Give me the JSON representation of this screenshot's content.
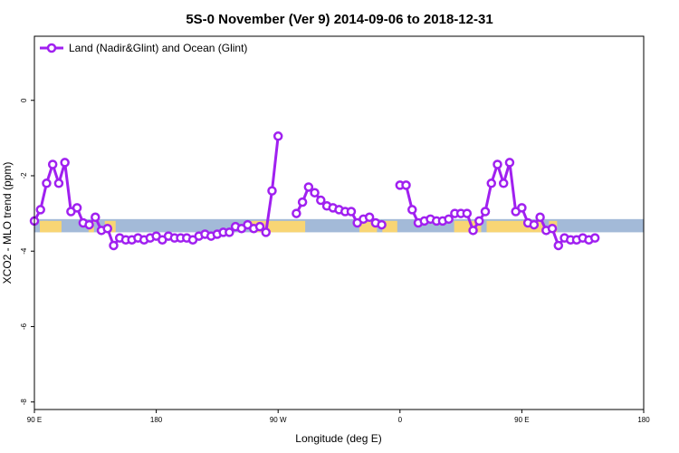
{
  "chart_data": {
    "type": "line",
    "title": "5S-0 November (Ver 9)   2014-09-06 to 2018-12-31",
    "xlabel": "Longitude (deg E)",
    "ylabel": "XCO2 - MLO trend (ppm)",
    "xlim": [
      90,
      540
    ],
    "ylim": [
      -8.2,
      1.7
    ],
    "x_ticks": [
      {
        "value": 90,
        "label": "90 E"
      },
      {
        "value": 180,
        "label": "180"
      },
      {
        "value": 270,
        "label": "90 W"
      },
      {
        "value": 360,
        "label": "0"
      },
      {
        "value": 450,
        "label": "90 E"
      },
      {
        "value": 540,
        "label": "180"
      }
    ],
    "y_ticks": [
      {
        "value": 0,
        "label": "0"
      },
      {
        "value": -2,
        "label": "-2"
      },
      {
        "value": -4,
        "label": "-4"
      },
      {
        "value": -6,
        "label": "-6"
      },
      {
        "value": -8,
        "label": "-8"
      }
    ],
    "legend_position": "top-left",
    "grid": false,
    "colors": {
      "series": "#a020f0",
      "ocean_band": "#a3bad8",
      "land_band": "#f8d574"
    },
    "band": {
      "y_range": [
        -3.5,
        -3.15
      ]
    },
    "series": [
      {
        "name": "Land (Nadir&Glint) and Ocean (Glint)",
        "points": [
          [
            90,
            -3.2
          ],
          [
            94.5,
            -2.9
          ],
          [
            99,
            -2.2
          ],
          [
            103.5,
            -1.7
          ],
          [
            108,
            -2.2
          ],
          [
            112.5,
            -1.65
          ],
          [
            117,
            -2.95
          ],
          [
            121.5,
            -2.85
          ],
          [
            126,
            -3.25
          ],
          [
            130.5,
            -3.3
          ],
          [
            135,
            -3.1
          ],
          [
            139.5,
            -3.45
          ],
          [
            144,
            -3.4
          ],
          [
            148.5,
            -3.85
          ],
          [
            153,
            -3.65
          ],
          [
            157.5,
            -3.7
          ],
          [
            162,
            -3.7
          ],
          [
            166.5,
            -3.65
          ],
          [
            171,
            -3.7
          ],
          [
            175.5,
            -3.65
          ],
          [
            180,
            -3.6
          ],
          [
            184.5,
            -3.7
          ],
          [
            189,
            -3.6
          ],
          [
            193.5,
            -3.65
          ],
          [
            198,
            -3.65
          ],
          [
            202.5,
            -3.65
          ],
          [
            207,
            -3.7
          ],
          [
            211.5,
            -3.6
          ],
          [
            216,
            -3.55
          ],
          [
            220.5,
            -3.6
          ],
          [
            225,
            -3.55
          ],
          [
            229.5,
            -3.5
          ],
          [
            234,
            -3.5
          ],
          [
            238.5,
            -3.35
          ],
          [
            243,
            -3.4
          ],
          [
            247.5,
            -3.3
          ],
          [
            252,
            -3.4
          ],
          [
            256.5,
            -3.35
          ],
          [
            261,
            -3.5
          ],
          [
            265.5,
            -2.4
          ],
          [
            270,
            -0.95
          ],
          null,
          [
            283.5,
            -3.0
          ],
          [
            288,
            -2.7
          ],
          [
            292.5,
            -2.3
          ],
          [
            297,
            -2.45
          ],
          [
            301.5,
            -2.65
          ],
          [
            306,
            -2.8
          ],
          [
            310.5,
            -2.85
          ],
          [
            315,
            -2.9
          ],
          [
            319.5,
            -2.95
          ],
          [
            324,
            -2.95
          ],
          [
            328.5,
            -3.25
          ],
          [
            333,
            -3.15
          ],
          [
            337.5,
            -3.1
          ],
          [
            342,
            -3.25
          ],
          [
            346.5,
            -3.3
          ],
          null,
          [
            360,
            -2.25
          ],
          [
            364.5,
            -2.25
          ],
          [
            369,
            -2.9
          ],
          [
            373.5,
            -3.25
          ],
          [
            378,
            -3.2
          ],
          [
            382.5,
            -3.15
          ],
          [
            387,
            -3.2
          ],
          [
            391.5,
            -3.2
          ],
          [
            396,
            -3.15
          ],
          [
            400.5,
            -3.0
          ],
          [
            405,
            -3.0
          ],
          [
            409.5,
            -3.0
          ],
          [
            414,
            -3.45
          ],
          [
            418.5,
            -3.2
          ],
          [
            423,
            -2.95
          ],
          [
            427.5,
            -2.2
          ],
          [
            432,
            -1.7
          ],
          [
            436.5,
            -2.2
          ],
          [
            441,
            -1.65
          ],
          [
            445.5,
            -2.95
          ],
          [
            450,
            -2.85
          ],
          [
            454.5,
            -3.25
          ],
          [
            459,
            -3.3
          ],
          [
            463.5,
            -3.1
          ],
          [
            468,
            -3.45
          ],
          [
            472.5,
            -3.4
          ],
          [
            477,
            -3.85
          ],
          [
            481.5,
            -3.65
          ],
          [
            486,
            -3.7
          ],
          [
            490.5,
            -3.7
          ],
          [
            495,
            -3.65
          ],
          [
            499.5,
            -3.7
          ],
          [
            504,
            -3.65
          ]
        ]
      }
    ]
  }
}
